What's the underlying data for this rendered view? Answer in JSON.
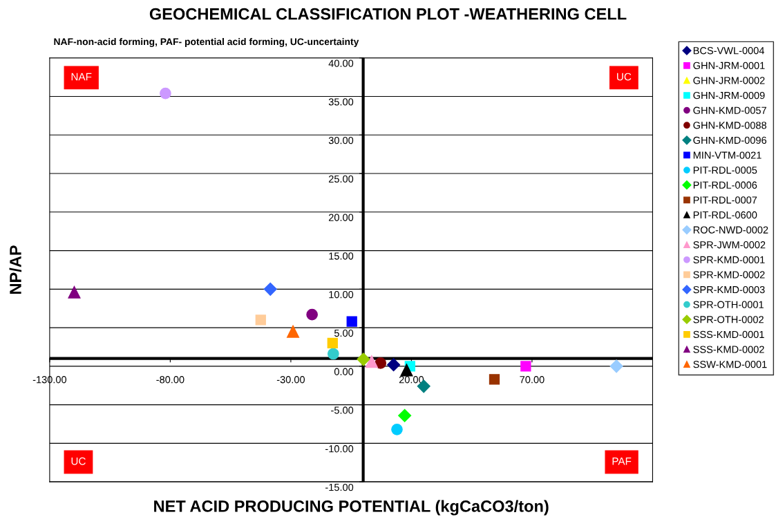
{
  "chart_data": {
    "type": "scatter",
    "title": "GEOCHEMICAL CLASSIFICATION PLOT -WEATHERING CELL",
    "subtitle": "NAF-non-acid forming, PAF- potential acid forming, UC-uncertainty",
    "xlabel": "NET ACID PRODUCING POTENTIAL (kgCaCO3/ton)",
    "ylabel": "NP/AP",
    "xlim": [
      -130,
      120
    ],
    "ylim": [
      -15,
      40
    ],
    "xticks": [
      {
        "value": -130,
        "label": "-130.00"
      },
      {
        "value": -80,
        "label": "-80.00"
      },
      {
        "value": -30,
        "label": "-30.00"
      },
      {
        "value": 20,
        "label": "20.00"
      },
      {
        "value": 70,
        "label": "70.00"
      }
    ],
    "yticks": [
      {
        "value": -15,
        "label": "-15.00"
      },
      {
        "value": -10,
        "label": "-10.00"
      },
      {
        "value": -5,
        "label": "-5.00"
      },
      {
        "value": 0,
        "label": "0.00"
      },
      {
        "value": 5,
        "label": "5.00"
      },
      {
        "value": 10,
        "label": "10.00"
      },
      {
        "value": 15,
        "label": "15.00"
      },
      {
        "value": 20,
        "label": "20.00"
      },
      {
        "value": 25,
        "label": "25.00"
      },
      {
        "value": 30,
        "label": "30.00"
      },
      {
        "value": 35,
        "label": "35.00"
      },
      {
        "value": 40,
        "label": "40.00"
      }
    ],
    "grid": "y",
    "legend": "right",
    "ref_lines": [
      {
        "axis": "x",
        "value": 0,
        "color": "#000000"
      },
      {
        "axis": "y",
        "value": 1,
        "color": "#000000"
      }
    ],
    "annotations": [
      "NAF",
      "UC",
      "UC",
      "PAF"
    ],
    "series": [
      {
        "name": "BCS-VWL-0004",
        "color": "#000080",
        "marker": "diamond",
        "x": [
          12.6
        ],
        "values": [
          0.2
        ]
      },
      {
        "name": "GHN-JRM-0001",
        "color": "#ff00ff",
        "marker": "square",
        "x": [
          67.4
        ],
        "values": [
          0
        ]
      },
      {
        "name": "GHN-JRM-0002",
        "color": "#ffff00",
        "marker": "triangle",
        "x": [
          null
        ],
        "values": [
          null
        ]
      },
      {
        "name": "GHN-JRM-0009",
        "color": "#00ffff",
        "marker": "square",
        "x": [
          19.4
        ],
        "values": [
          0
        ]
      },
      {
        "name": "GHN-KMD-0057",
        "color": "#800080",
        "marker": "circle",
        "x": [
          -21.2
        ],
        "values": [
          6.7
        ]
      },
      {
        "name": "GHN-KMD-0088",
        "color": "#800000",
        "marker": "circle",
        "x": [
          7.2
        ],
        "values": [
          0.4
        ]
      },
      {
        "name": "GHN-KMD-0096",
        "color": "#008080",
        "marker": "diamond",
        "x": [
          25.1
        ],
        "values": [
          -2.6
        ]
      },
      {
        "name": "MIN-VTM-0021",
        "color": "#0000ff",
        "marker": "square",
        "x": [
          -4.7
        ],
        "values": [
          5.8
        ]
      },
      {
        "name": "PIT-RDL-0005",
        "color": "#00ccff",
        "marker": "circle",
        "x": [
          14
        ],
        "values": [
          -8.2
        ]
      },
      {
        "name": "PIT-RDL-0006",
        "color": "#00ff00",
        "marker": "diamond",
        "x": [
          17.2
        ],
        "values": [
          -6.4
        ]
      },
      {
        "name": "PIT-RDL-0007",
        "color": "#993300",
        "marker": "square",
        "x": [
          54.4
        ],
        "values": [
          -1.7
        ]
      },
      {
        "name": "PIT-RDL-0600",
        "color": "#000000",
        "marker": "triangle",
        "x": [
          18
        ],
        "values": [
          -0.5
        ]
      },
      {
        "name": "ROC-NWD-0002",
        "color": "#99ccff",
        "marker": "diamond",
        "x": [
          105
        ],
        "values": [
          0
        ]
      },
      {
        "name": "SPR-JWM-0002",
        "color": "#ff99cc",
        "marker": "triangle",
        "x": [
          3.5
        ],
        "values": [
          0.6
        ]
      },
      {
        "name": "SPR-KMD-0001",
        "color": "#cc99ff",
        "marker": "circle",
        "x": [
          -82
        ],
        "values": [
          35.4
        ]
      },
      {
        "name": "SPR-KMD-0002",
        "color": "#ffcc99",
        "marker": "square",
        "x": [
          -42.5
        ],
        "values": [
          6
        ]
      },
      {
        "name": "SPR-KMD-0003",
        "color": "#3366ff",
        "marker": "diamond",
        "x": [
          -38.5
        ],
        "values": [
          10
        ]
      },
      {
        "name": "SPR-OTH-0001",
        "color": "#33cccc",
        "marker": "circle",
        "x": [
          -12.4
        ],
        "values": [
          1.6
        ]
      },
      {
        "name": "SPR-OTH-0002",
        "color": "#99cc00",
        "marker": "diamond",
        "x": [
          0.1
        ],
        "values": [
          0.9
        ]
      },
      {
        "name": "SSS-KMD-0001",
        "color": "#ffcc00",
        "marker": "square",
        "x": [
          -12.7
        ],
        "values": [
          3
        ]
      },
      {
        "name": "SSS-KMD-0002",
        "color": "#800080",
        "marker": "triangle",
        "x": [
          -119.8
        ],
        "values": [
          9.6
        ]
      },
      {
        "name": "SSW-KMD-0001",
        "color": "#ff6600",
        "marker": "triangle",
        "x": [
          -29.1
        ],
        "values": [
          4.5
        ]
      }
    ]
  }
}
